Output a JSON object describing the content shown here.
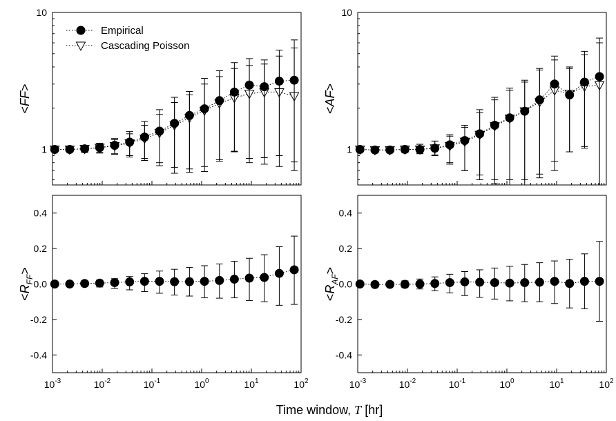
{
  "chart_data": [
    {
      "type": "scatter",
      "panel": "top-left",
      "ylabel": "<FF>",
      "yscale": "log",
      "ylim": [
        0.55,
        10
      ],
      "xscale": "log",
      "xlim": [
        0.001,
        100
      ],
      "yticks": [
        {
          "value": 1,
          "label": "1"
        },
        {
          "value": 10,
          "label": "10"
        }
      ],
      "legend": {
        "placement": "top-left",
        "entries": [
          "Empirical",
          "Cascading Poisson"
        ]
      },
      "x": [
        0.00111,
        0.00222,
        0.00444,
        0.00889,
        0.0178,
        0.0356,
        0.0711,
        0.142,
        0.284,
        0.569,
        1.14,
        2.28,
        4.55,
        9.1,
        18.2,
        36.4,
        72.8
      ],
      "series": [
        {
          "name": "Empirical",
          "marker": "circle",
          "values": [
            1.0,
            1.0,
            1.01,
            1.03,
            1.07,
            1.13,
            1.23,
            1.36,
            1.55,
            1.77,
            1.98,
            2.27,
            2.62,
            2.95,
            2.87,
            3.15,
            3.2
          ],
          "err_low": [
            0.97,
            0.96,
            0.95,
            0.94,
            0.92,
            0.88,
            0.83,
            0.76,
            0.67,
            0.68,
            0.69,
            0.82,
            0.97,
            0.86,
            0.87,
            0.9,
            0.81
          ],
          "err_high": [
            1.04,
            1.05,
            1.07,
            1.11,
            1.2,
            1.35,
            1.6,
            1.95,
            2.4,
            2.65,
            3.3,
            3.75,
            4.3,
            4.6,
            4.5,
            5.3,
            6.3
          ]
        },
        {
          "name": "Cascading Poisson",
          "marker": "triangle-down",
          "values": [
            1.0,
            1.0,
            1.01,
            1.03,
            1.06,
            1.11,
            1.2,
            1.32,
            1.5,
            1.7,
            1.92,
            2.17,
            2.38,
            2.55,
            2.62,
            2.62,
            2.45
          ],
          "err_low": [
            0.97,
            0.97,
            0.96,
            0.95,
            0.93,
            0.9,
            0.86,
            0.8,
            0.74,
            0.72,
            0.75,
            0.84,
            0.96,
            0.8,
            0.78,
            0.75,
            0.7
          ],
          "err_high": [
            1.03,
            1.04,
            1.06,
            1.1,
            1.18,
            1.3,
            1.5,
            1.8,
            2.2,
            2.5,
            3.0,
            3.4,
            3.9,
            4.1,
            4.2,
            4.8,
            5.5
          ]
        }
      ]
    },
    {
      "type": "scatter",
      "panel": "top-right",
      "ylabel": "<AF>",
      "yscale": "log",
      "ylim": [
        0.55,
        10
      ],
      "xscale": "log",
      "xlim": [
        0.001,
        100
      ],
      "yticks": [
        {
          "value": 1,
          "label": "1"
        },
        {
          "value": 10,
          "label": "10"
        }
      ],
      "x": [
        0.00111,
        0.00222,
        0.00444,
        0.00889,
        0.0178,
        0.0356,
        0.0711,
        0.142,
        0.284,
        0.569,
        1.14,
        2.28,
        4.55,
        9.1,
        18.2,
        36.4,
        72.8
      ],
      "series": [
        {
          "name": "Empirical",
          "marker": "circle",
          "values": [
            1.0,
            0.99,
            0.99,
            1.0,
            1.0,
            1.02,
            1.08,
            1.16,
            1.3,
            1.5,
            1.7,
            1.9,
            2.3,
            3.0,
            2.5,
            3.1,
            3.4
          ],
          "err_low": [
            0.98,
            0.97,
            0.96,
            0.95,
            0.93,
            0.9,
            0.78,
            0.7,
            0.6,
            0.56,
            0.55,
            0.55,
            0.62,
            0.7,
            0.96,
            1.05,
            0.55
          ],
          "err_high": [
            1.02,
            1.03,
            1.04,
            1.06,
            1.09,
            1.15,
            1.28,
            1.5,
            1.95,
            2.4,
            2.8,
            3.2,
            3.9,
            4.8,
            4.0,
            5.2,
            6.5
          ]
        },
        {
          "name": "Cascading Poisson",
          "marker": "triangle-down",
          "values": [
            1.0,
            0.99,
            0.99,
            1.0,
            1.0,
            1.02,
            1.06,
            1.14,
            1.28,
            1.48,
            1.68,
            1.9,
            2.22,
            2.7,
            2.55,
            2.88,
            2.95
          ],
          "err_low": [
            0.98,
            0.97,
            0.96,
            0.95,
            0.94,
            0.91,
            0.8,
            0.7,
            0.65,
            0.6,
            0.6,
            0.6,
            0.66,
            0.82,
            0.96,
            1.02,
            0.55
          ],
          "err_high": [
            1.02,
            1.03,
            1.04,
            1.06,
            1.09,
            1.15,
            1.25,
            1.45,
            1.85,
            2.3,
            2.7,
            3.1,
            3.8,
            4.5,
            3.9,
            4.9,
            6.0
          ]
        }
      ]
    },
    {
      "type": "scatter",
      "panel": "bottom-left",
      "ylabel": "<R_FF>",
      "yscale": "linear",
      "ylim": [
        -0.5,
        0.5
      ],
      "xscale": "log",
      "xlim": [
        0.001,
        100
      ],
      "yticks": [
        {
          "value": 0.4,
          "label": "0.4"
        },
        {
          "value": 0.2,
          "label": "0.2"
        },
        {
          "value": 0.0,
          "label": "0.0"
        },
        {
          "value": -0.2,
          "label": "-0.2"
        },
        {
          "value": -0.4,
          "label": "-0.4"
        }
      ],
      "x": [
        0.00111,
        0.00222,
        0.00444,
        0.00889,
        0.0178,
        0.0356,
        0.0711,
        0.142,
        0.284,
        0.569,
        1.14,
        2.28,
        4.55,
        9.1,
        18.2,
        36.4,
        72.8
      ],
      "series": [
        {
          "name": "Empirical",
          "marker": "circle",
          "values": [
            0.0,
            0.0,
            0.003,
            0.005,
            0.008,
            0.012,
            0.015,
            0.015,
            0.013,
            0.013,
            0.015,
            0.02,
            0.027,
            0.033,
            0.037,
            0.06,
            0.08
          ],
          "err_low": [
            -0.005,
            -0.008,
            -0.012,
            -0.017,
            -0.025,
            -0.033,
            -0.043,
            -0.052,
            -0.062,
            -0.068,
            -0.078,
            -0.08,
            -0.078,
            -0.093,
            -0.1,
            -0.12,
            -0.115
          ],
          "err_high": [
            0.007,
            0.01,
            0.015,
            0.022,
            0.03,
            0.042,
            0.058,
            0.073,
            0.083,
            0.093,
            0.103,
            0.113,
            0.128,
            0.145,
            0.165,
            0.21,
            0.27
          ]
        }
      ]
    },
    {
      "type": "scatter",
      "panel": "bottom-right",
      "ylabel": "<R_AF>",
      "yscale": "linear",
      "ylim": [
        -0.5,
        0.5
      ],
      "xscale": "log",
      "xlim": [
        0.001,
        100
      ],
      "yticks": [
        {
          "value": 0.4,
          "label": "0.4"
        },
        {
          "value": 0.2,
          "label": "0.2"
        },
        {
          "value": 0.0,
          "label": "0.0"
        },
        {
          "value": -0.2,
          "label": "-0.2"
        },
        {
          "value": -0.4,
          "label": "-0.4"
        }
      ],
      "x": [
        0.00111,
        0.00222,
        0.00444,
        0.00889,
        0.0178,
        0.0356,
        0.0711,
        0.142,
        0.284,
        0.569,
        1.14,
        2.28,
        4.55,
        9.1,
        18.2,
        36.4,
        72.8
      ],
      "series": [
        {
          "name": "Empirical",
          "marker": "circle",
          "values": [
            0.0,
            -0.003,
            -0.002,
            -0.002,
            0.0,
            0.003,
            0.008,
            0.012,
            0.01,
            0.008,
            0.005,
            0.008,
            0.01,
            0.015,
            0.003,
            0.015,
            0.015
          ],
          "err_low": [
            -0.005,
            -0.01,
            -0.015,
            -0.02,
            -0.028,
            -0.038,
            -0.05,
            -0.065,
            -0.075,
            -0.085,
            -0.095,
            -0.1,
            -0.1,
            -0.11,
            -0.135,
            -0.14,
            -0.21
          ],
          "err_high": [
            0.005,
            0.008,
            0.012,
            0.018,
            0.028,
            0.04,
            0.055,
            0.07,
            0.08,
            0.09,
            0.1,
            0.11,
            0.12,
            0.13,
            0.14,
            0.17,
            0.24
          ]
        }
      ]
    }
  ],
  "x_ticks": [
    {
      "base": "10",
      "exp": "-3",
      "value": 0.001
    },
    {
      "base": "10",
      "exp": "-2",
      "value": 0.01
    },
    {
      "base": "10",
      "exp": "-1",
      "value": 0.1
    },
    {
      "base": "10",
      "exp": "0",
      "value": 1
    },
    {
      "base": "10",
      "exp": "1",
      "value": 10
    },
    {
      "base": "10",
      "exp": "2",
      "value": 100
    }
  ],
  "xlabel": {
    "prefix": "Time window, ",
    "symbol": "T",
    "suffix": " [hr]"
  },
  "colors": {
    "marker": "#000000",
    "axis": "#000000",
    "background": "#ffffff"
  }
}
